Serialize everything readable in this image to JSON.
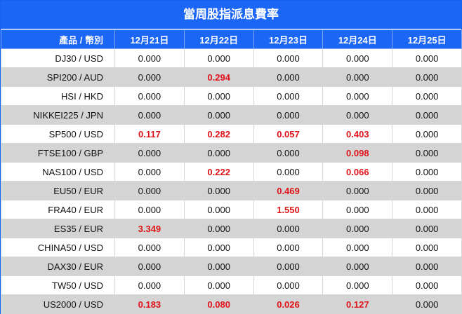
{
  "title": "當周股指派息費率",
  "header": {
    "product": "產品 / 幣別",
    "dates": [
      "12月21日",
      "12月22日",
      "12月23日",
      "12月24日",
      "12月25日"
    ]
  },
  "colors": {
    "header_bg": "#1c66f5",
    "highlight_text": "#e0141a",
    "alt_row": "#d4d4d4"
  },
  "rows": [
    {
      "product": "DJ30 / USD",
      "values": [
        "0.000",
        "0.000",
        "0.000",
        "0.000",
        "0.000"
      ]
    },
    {
      "product": "SPI200 / AUD",
      "values": [
        "0.000",
        "0.294",
        "0.000",
        "0.000",
        "0.000"
      ]
    },
    {
      "product": "HSI / HKD",
      "values": [
        "0.000",
        "0.000",
        "0.000",
        "0.000",
        "0.000"
      ]
    },
    {
      "product": "NIKKEI225 / JPN",
      "values": [
        "0.000",
        "0.000",
        "0.000",
        "0.000",
        "0.000"
      ]
    },
    {
      "product": "SP500 / USD",
      "values": [
        "0.117",
        "0.282",
        "0.057",
        "0.403",
        "0.000"
      ]
    },
    {
      "product": "FTSE100 / GBP",
      "values": [
        "0.000",
        "0.000",
        "0.000",
        "0.098",
        "0.000"
      ]
    },
    {
      "product": "NAS100 / USD",
      "values": [
        "0.000",
        "0.222",
        "0.000",
        "0.066",
        "0.000"
      ]
    },
    {
      "product": "EU50 / EUR",
      "values": [
        "0.000",
        "0.000",
        "0.469",
        "0.000",
        "0.000"
      ]
    },
    {
      "product": "FRA40 / EUR",
      "values": [
        "0.000",
        "0.000",
        "1.550",
        "0.000",
        "0.000"
      ]
    },
    {
      "product": "ES35 / EUR",
      "values": [
        "3.349",
        "0.000",
        "0.000",
        "0.000",
        "0.000"
      ]
    },
    {
      "product": "CHINA50 / USD",
      "values": [
        "0.000",
        "0.000",
        "0.000",
        "0.000",
        "0.000"
      ]
    },
    {
      "product": "DAX30 / EUR",
      "values": [
        "0.000",
        "0.000",
        "0.000",
        "0.000",
        "0.000"
      ]
    },
    {
      "product": "TW50 / USD",
      "values": [
        "0.000",
        "0.000",
        "0.000",
        "0.000",
        "0.000"
      ]
    },
    {
      "product": "US2000 / USD",
      "values": [
        "0.183",
        "0.080",
        "0.026",
        "0.127",
        "0.000"
      ]
    }
  ]
}
